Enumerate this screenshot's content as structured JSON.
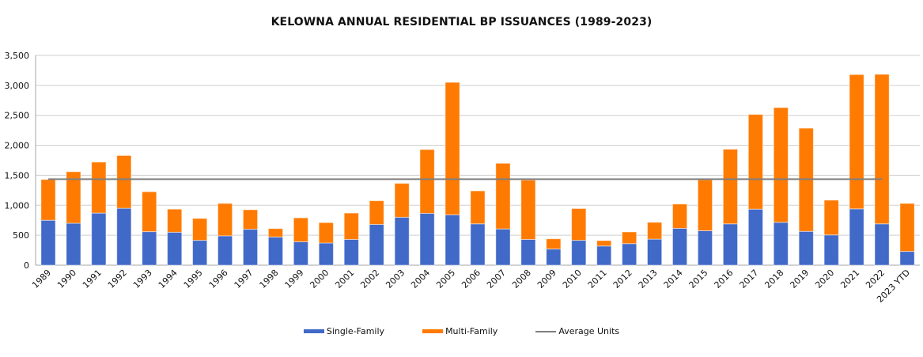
{
  "chart_data": {
    "type": "bar",
    "stacked": true,
    "title": "KELOWNA ANNUAL RESIDENTIAL BP ISSUANCES (1989-2023)",
    "xlabel": "",
    "ylabel": "",
    "ylim": [
      0,
      3500
    ],
    "yticks": [
      0,
      500,
      1000,
      1500,
      2000,
      2500,
      3000,
      3500
    ],
    "ytick_labels": [
      "0",
      "500",
      "1,000",
      "1,500",
      "2,000",
      "2,500",
      "3,000",
      "3,500"
    ],
    "grid": true,
    "legend_position": "bottom",
    "categories": [
      "1989",
      "1990",
      "1991",
      "1992",
      "1993",
      "1994",
      "1995",
      "1996",
      "1997",
      "1998",
      "1999",
      "2000",
      "2001",
      "2002",
      "2003",
      "2004",
      "2005",
      "2006",
      "2007",
      "2008",
      "2009",
      "2010",
      "2011",
      "2012",
      "2013",
      "2014",
      "2015",
      "2016",
      "2017",
      "2018",
      "2019",
      "2020",
      "2021",
      "2022",
      "2023 YTD"
    ],
    "series": [
      {
        "name": "Single-Family",
        "color": "#4169c8",
        "values": [
          750,
          700,
          870,
          950,
          560,
          550,
          415,
          490,
          600,
          470,
          390,
          370,
          430,
          680,
          800,
          865,
          840,
          690,
          605,
          430,
          270,
          415,
          320,
          360,
          435,
          615,
          575,
          690,
          935,
          715,
          565,
          505,
          940,
          690,
          230
        ]
      },
      {
        "name": "Multi-Family",
        "color": "#ff7a00",
        "values": [
          680,
          860,
          850,
          880,
          665,
          385,
          365,
          540,
          325,
          140,
          400,
          340,
          440,
          395,
          565,
          1065,
          2210,
          550,
          1095,
          990,
          170,
          530,
          90,
          195,
          280,
          405,
          850,
          1245,
          1580,
          1915,
          1720,
          580,
          2240,
          2495,
          800
        ]
      }
    ],
    "average_line": {
      "name": "Average Units",
      "color": "#7f7f7f",
      "value": 1435,
      "from": "1989",
      "to": "2022"
    }
  }
}
